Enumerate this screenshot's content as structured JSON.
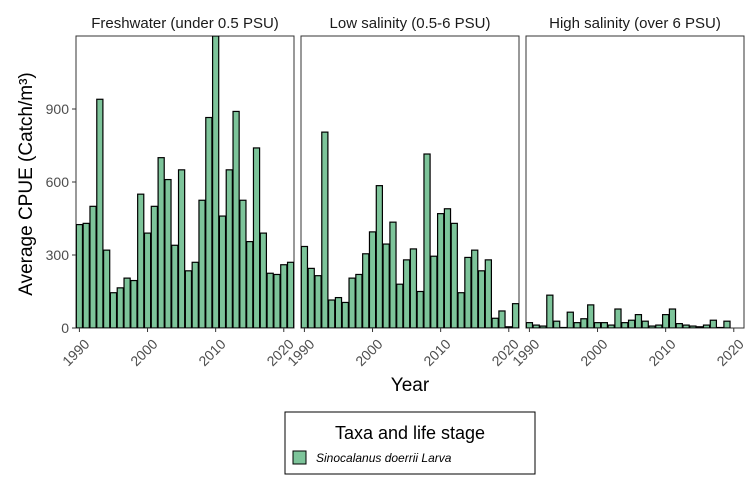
{
  "chart_data": {
    "type": "bar",
    "panels": [
      {
        "title": "Freshwater (under 0.5 PSU)",
        "x": [
          1990,
          1991,
          1992,
          1993,
          1994,
          1995,
          1996,
          1997,
          1998,
          1999,
          2000,
          2001,
          2002,
          2003,
          2004,
          2005,
          2006,
          2007,
          2008,
          2009,
          2010,
          2011,
          2012,
          2013,
          2014,
          2015,
          2016,
          2017,
          2018,
          2019,
          2020,
          2021
        ],
        "values": [
          425,
          430,
          500,
          940,
          320,
          145,
          165,
          205,
          195,
          550,
          390,
          500,
          700,
          610,
          340,
          650,
          235,
          270,
          525,
          865,
          1200,
          460,
          650,
          890,
          525,
          355,
          740,
          390,
          225,
          220,
          260,
          270
        ]
      },
      {
        "title": "Low salinity (0.5-6 PSU)",
        "x": [
          1990,
          1991,
          1992,
          1993,
          1994,
          1995,
          1996,
          1997,
          1998,
          1999,
          2000,
          2001,
          2002,
          2003,
          2004,
          2005,
          2006,
          2007,
          2008,
          2009,
          2010,
          2011,
          2012,
          2013,
          2014,
          2015,
          2016,
          2017,
          2018,
          2019,
          2020,
          2021
        ],
        "values": [
          335,
          245,
          215,
          805,
          115,
          125,
          105,
          205,
          220,
          305,
          395,
          585,
          345,
          435,
          180,
          280,
          325,
          150,
          715,
          295,
          470,
          490,
          430,
          145,
          290,
          320,
          235,
          280,
          40,
          70,
          5,
          100
        ]
      },
      {
        "title": "High salinity (over 6 PSU)",
        "x": [
          1990,
          1991,
          1992,
          1993,
          1994,
          1995,
          1996,
          1997,
          1998,
          1999,
          2000,
          2001,
          2002,
          2003,
          2004,
          2005,
          2006,
          2007,
          2008,
          2009,
          2010,
          2011,
          2012,
          2013,
          2014,
          2015,
          2016,
          2017,
          2018,
          2019,
          2020
        ],
        "values": [
          22,
          12,
          8,
          135,
          28,
          2,
          65,
          22,
          38,
          95,
          22,
          22,
          12,
          78,
          22,
          32,
          55,
          28,
          8,
          12,
          55,
          78,
          18,
          12,
          8,
          5,
          12,
          32,
          2,
          28,
          0
        ]
      }
    ],
    "xlabel": "Year",
    "ylabel": "Average CPUE (Catch/m³)",
    "ylim": [
      0,
      1200
    ],
    "xlim": [
      1989.5,
      2021.5
    ],
    "yticks": [
      0,
      300,
      600,
      900
    ],
    "xticks": [
      1990,
      2000,
      2010,
      2020
    ],
    "grid": false,
    "legend": {
      "title": "Taxa and life stage",
      "entries": [
        "Sinocalanus doerrii Larva"
      ],
      "placement": "bottom"
    },
    "colors": {
      "bar_fill": "#7dc49a",
      "bar_stroke": "#000000",
      "panel_border": "#333333"
    }
  }
}
